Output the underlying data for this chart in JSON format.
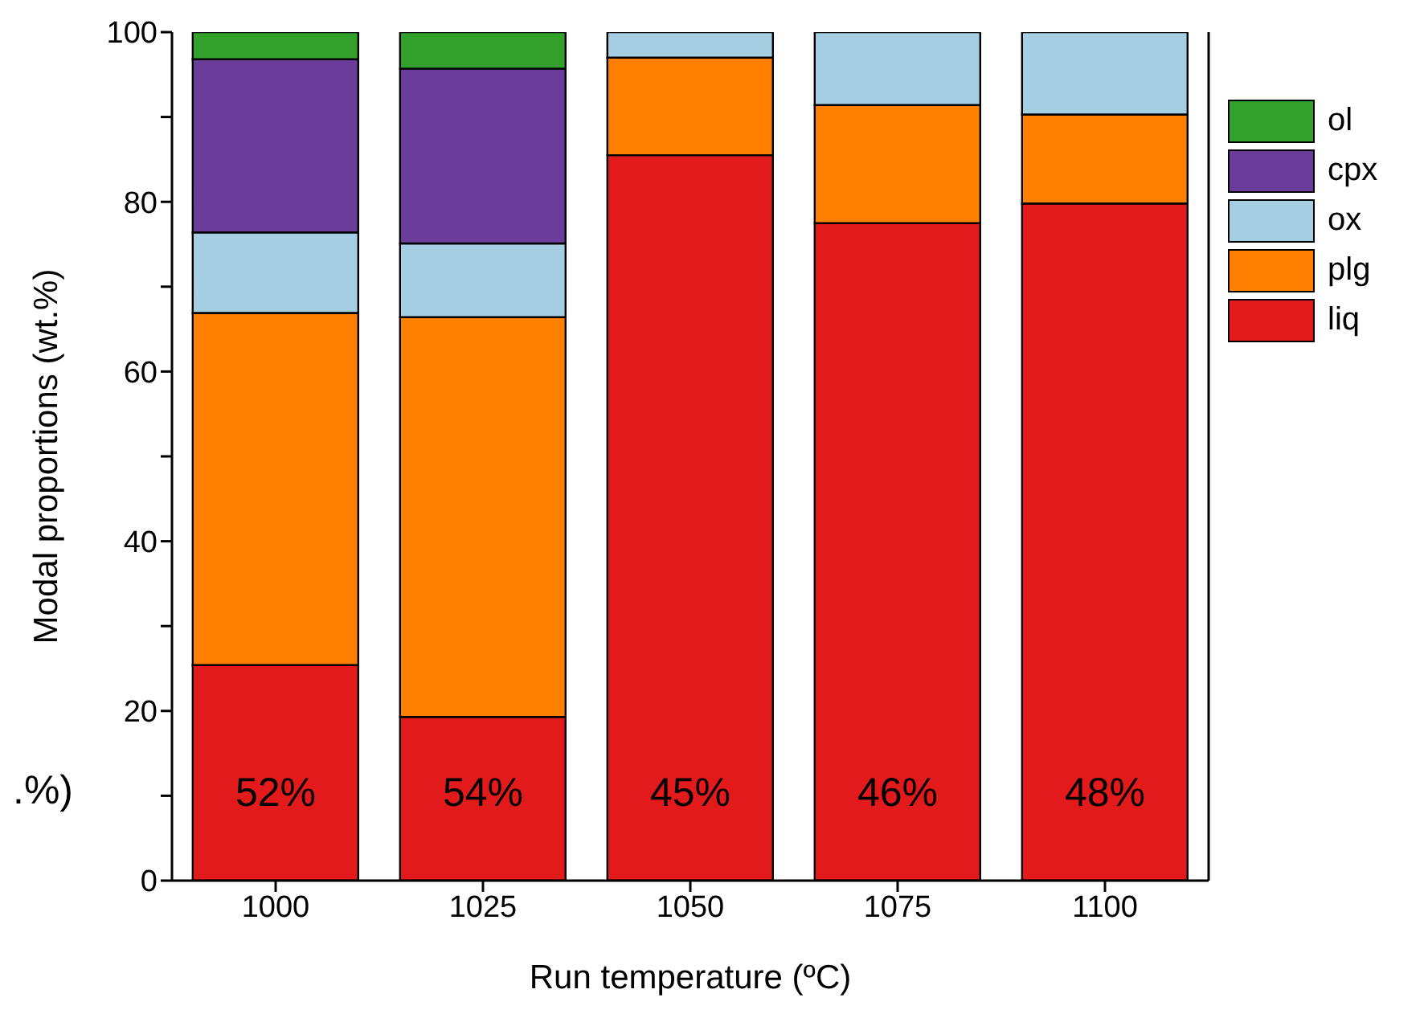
{
  "chart_data": {
    "type": "bar",
    "stacked": true,
    "xlabel": "Run temperature (ºC)",
    "ylabel": "Modal proportions (wt.%)",
    "categories": [
      "1000",
      "1025",
      "1050",
      "1075",
      "1100"
    ],
    "series": [
      {
        "name": "liq",
        "color": "#e31a1c",
        "values": [
          25.4,
          19.3,
          85.5,
          77.5,
          79.8
        ]
      },
      {
        "name": "plg",
        "color": "#ff7f00",
        "values": [
          41.5,
          47.1,
          11.5,
          13.9,
          10.5
        ]
      },
      {
        "name": "ox",
        "color": "#a6cee3",
        "values": [
          9.5,
          8.7,
          3.0,
          8.6,
          9.7
        ]
      },
      {
        "name": "cpx",
        "color": "#6a3d9a",
        "values": [
          20.4,
          20.6,
          null,
          null,
          null
        ]
      },
      {
        "name": "ol",
        "color": "#33a02c",
        "values": [
          3.2,
          4.3,
          null,
          null,
          null
        ]
      }
    ],
    "ylim": [
      0,
      100
    ],
    "yticks": [
      0,
      {
        "value": 10,
        "label": null
      },
      20,
      {
        "value": 30,
        "label": null
      },
      40,
      {
        "value": 50,
        "label": null
      },
      60,
      {
        "value": 70,
        "label": null
      },
      80,
      {
        "value": 90,
        "label": null
      },
      100
    ],
    "annotations": [
      "52%",
      "54%",
      "45%",
      "46%",
      "48%",
      ".%)"
    ],
    "legend": "top right",
    "grid": false
  }
}
